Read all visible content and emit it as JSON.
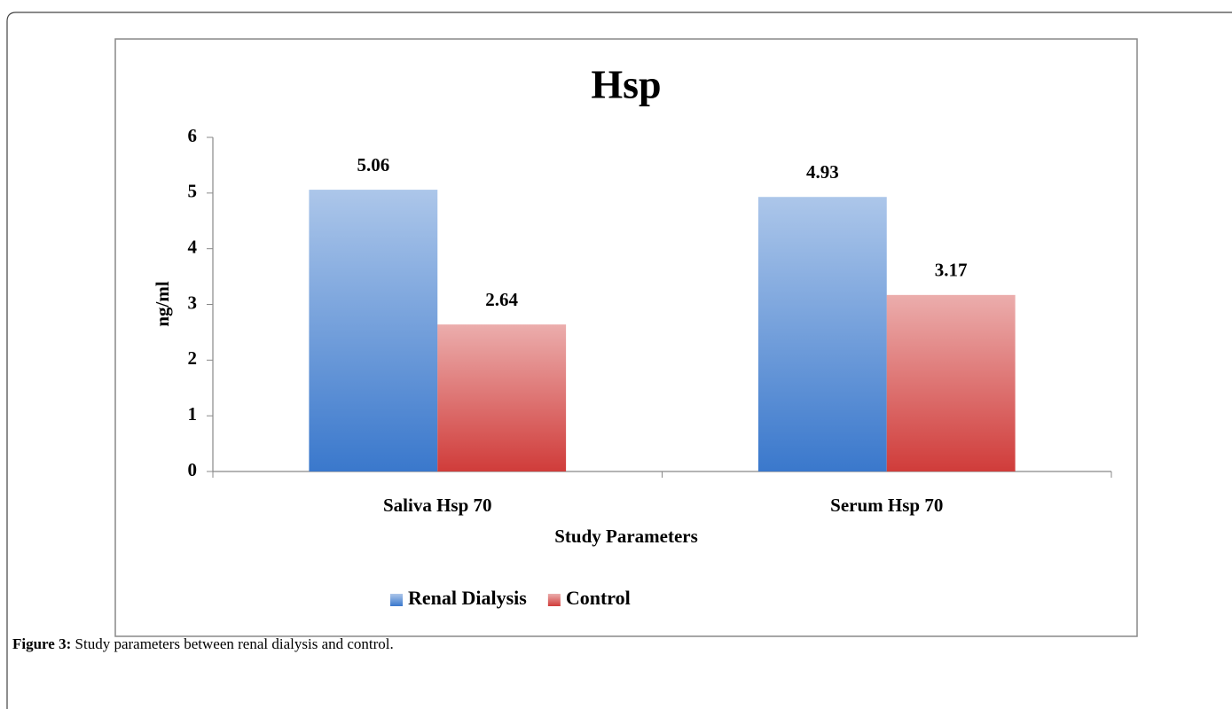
{
  "chart_data": {
    "type": "bar",
    "title": "Hsp",
    "categories": [
      "Saliva Hsp 70",
      "Serum Hsp 70"
    ],
    "series": [
      {
        "name": "Renal Dialysis",
        "color": "#3a78cc",
        "values": [
          5.06,
          4.93
        ]
      },
      {
        "name": "Control",
        "color": "#d03c3a",
        "values": [
          2.64,
          3.17
        ]
      }
    ],
    "ylim": [
      0,
      6
    ],
    "yticks": [
      0,
      1,
      2,
      3,
      4,
      5,
      6
    ],
    "xlabel": "Study Parameters",
    "ylabel": "ng/ml",
    "legend": "bottom",
    "grid": false
  },
  "caption": {
    "label": "Figure 3:",
    "text": "Study parameters between renal dialysis and control."
  }
}
